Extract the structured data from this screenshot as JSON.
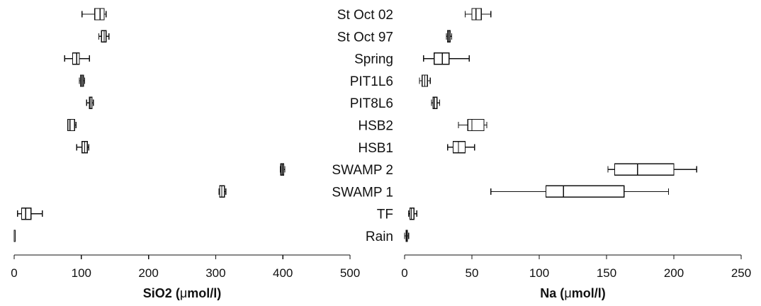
{
  "chart_data": {
    "type": "boxplot",
    "categories": [
      "St Oct 02",
      "St Oct 97",
      "Spring",
      "PIT1L6",
      "PIT8L6",
      "HSB2",
      "HSB1",
      "SWAMP 2",
      "SWAMP 1",
      "TF",
      "Rain"
    ],
    "panels": [
      {
        "xlabel_prefix": "SiO2 (",
        "xlabel_mu": "μ",
        "xlabel_suffix": "mol/l)",
        "xlim": [
          0,
          500
        ],
        "xticks": [
          0,
          100,
          200,
          300,
          400,
          500
        ],
        "boxes": [
          {
            "category": "St Oct 02",
            "min": 101,
            "q1": 120,
            "median": 128,
            "q3": 134,
            "max": 137
          },
          {
            "category": "St Oct 97",
            "min": 126,
            "q1": 130,
            "median": 134,
            "q3": 137,
            "max": 141
          },
          {
            "category": "Spring",
            "min": 75,
            "q1": 87,
            "median": 93,
            "q3": 97,
            "max": 112
          },
          {
            "category": "PIT1L6",
            "min": 97,
            "q1": 99,
            "median": 101,
            "q3": 103,
            "max": 105
          },
          {
            "category": "PIT8L6",
            "min": 108,
            "q1": 112,
            "median": 114,
            "q3": 116,
            "max": 118
          },
          {
            "category": "HSB2",
            "min": 80,
            "q1": 80,
            "median": 83,
            "q3": 90,
            "max": 92
          },
          {
            "category": "HSB1",
            "min": 93,
            "q1": 101,
            "median": 105,
            "q3": 109,
            "max": 111
          },
          {
            "category": "SWAMP 2",
            "min": 396,
            "q1": 397,
            "median": 399,
            "q3": 401,
            "max": 403
          },
          {
            "category": "SWAMP 1",
            "min": 305,
            "q1": 306,
            "median": 309,
            "q3": 313,
            "max": 315
          },
          {
            "category": "TF",
            "min": 5,
            "q1": 11,
            "median": 17,
            "q3": 25,
            "max": 42
          },
          {
            "category": "Rain",
            "min": 0,
            "q1": 0,
            "median": 0,
            "q3": 0,
            "max": 0
          }
        ]
      },
      {
        "xlabel_prefix": "Na (",
        "xlabel_mu": "μ",
        "xlabel_suffix": "mol/l)",
        "xlim": [
          0,
          250
        ],
        "xticks": [
          0,
          50,
          100,
          150,
          200,
          250
        ],
        "boxes": [
          {
            "category": "St Oct 02",
            "min": 45,
            "q1": 50,
            "median": 53,
            "q3": 57,
            "max": 64
          },
          {
            "category": "St Oct 97",
            "min": 31,
            "q1": 32,
            "median": 33,
            "q3": 34,
            "max": 35
          },
          {
            "category": "Spring",
            "min": 14,
            "q1": 22,
            "median": 28,
            "q3": 33,
            "max": 48
          },
          {
            "category": "PIT1L6",
            "min": 11,
            "q1": 13,
            "median": 15,
            "q3": 17,
            "max": 19
          },
          {
            "category": "PIT8L6",
            "min": 20,
            "q1": 21,
            "median": 22,
            "q3": 24,
            "max": 26
          },
          {
            "category": "HSB2",
            "min": 40,
            "q1": 47,
            "median": 50,
            "q3": 59,
            "max": 61
          },
          {
            "category": "HSB1",
            "min": 32,
            "q1": 36,
            "median": 40,
            "q3": 45,
            "max": 52
          },
          {
            "category": "SWAMP 2",
            "min": 151,
            "q1": 156,
            "median": 173,
            "q3": 200,
            "max": 217
          },
          {
            "category": "SWAMP 1",
            "min": 64,
            "q1": 105,
            "median": 118,
            "q3": 163,
            "max": 196
          },
          {
            "category": "TF",
            "min": 3,
            "q1": 4,
            "median": 5,
            "q3": 7,
            "max": 9
          },
          {
            "category": "Rain",
            "min": 0,
            "q1": 1,
            "median": 1.5,
            "q3": 2,
            "max": 3
          }
        ]
      }
    ]
  }
}
